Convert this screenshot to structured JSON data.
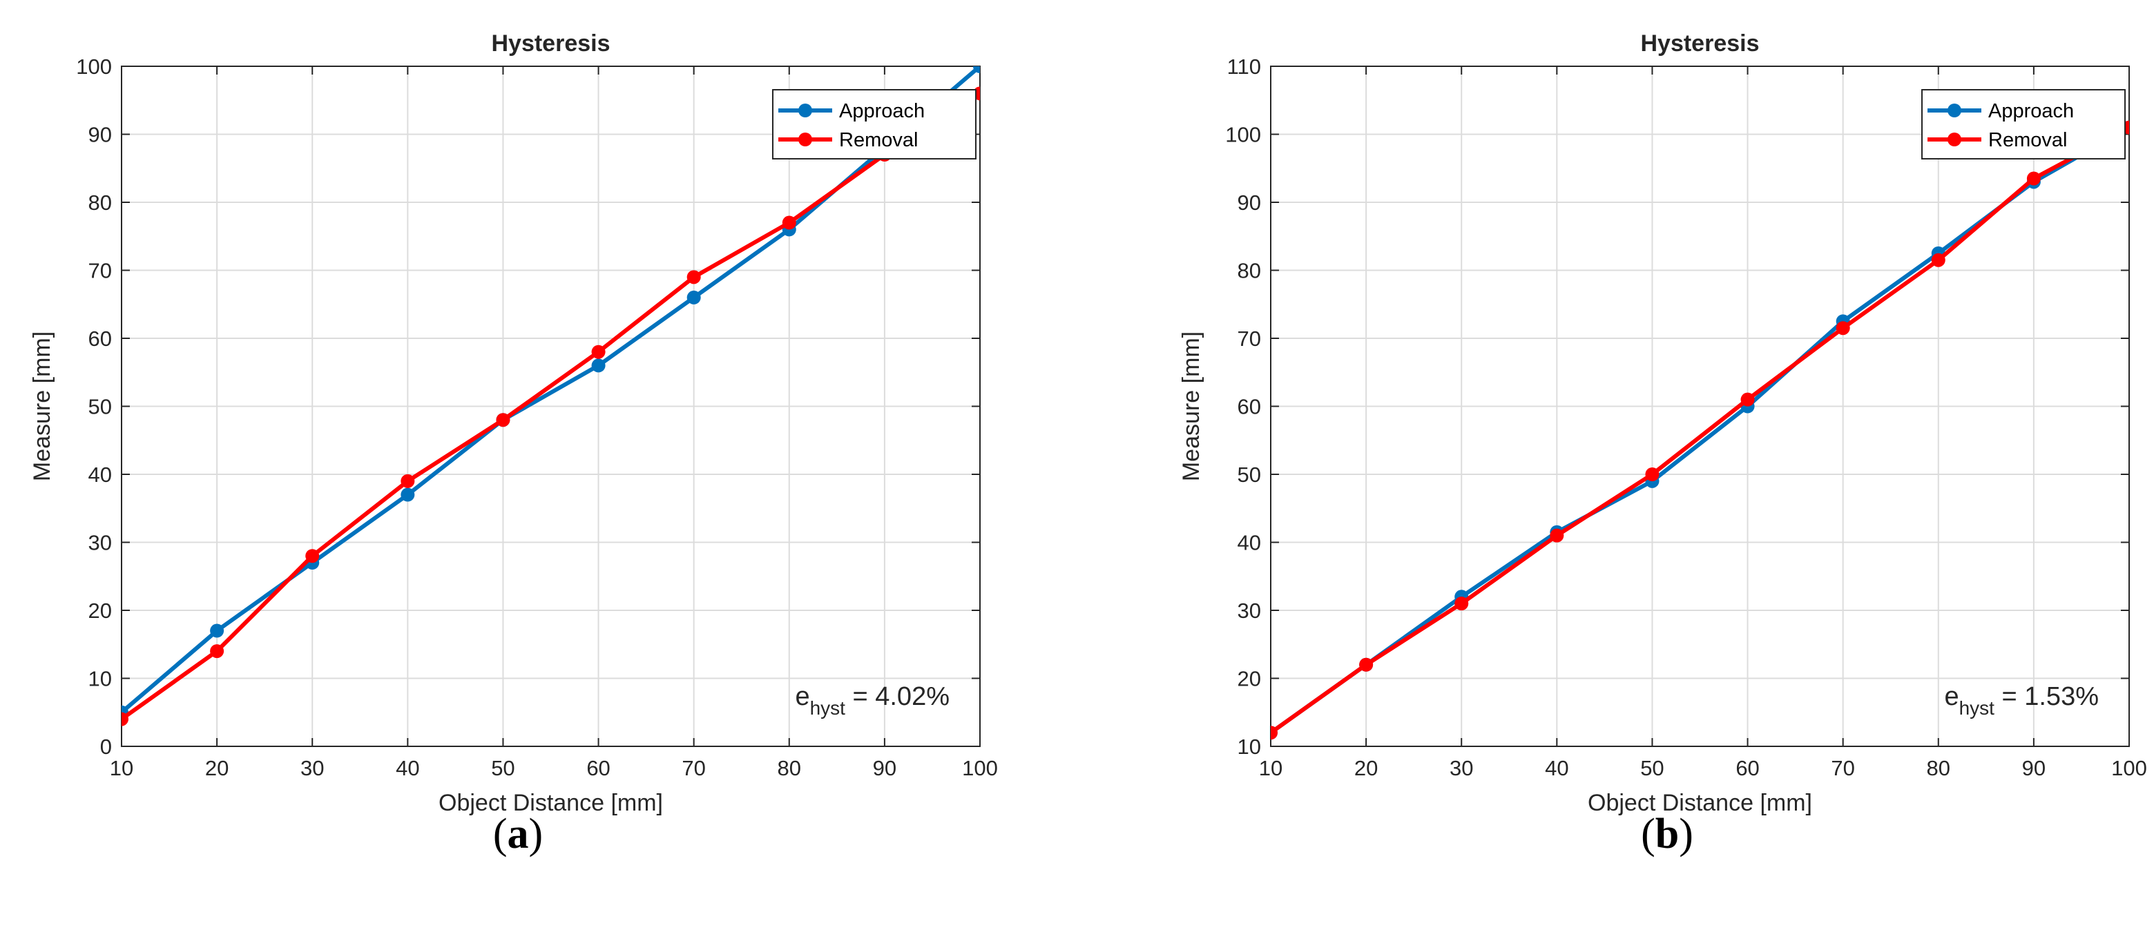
{
  "chart_data": [
    {
      "type": "line",
      "title": "Hysteresis",
      "xlabel": "Object Distance [mm]",
      "ylabel": "Measure [mm]",
      "xlim": [
        10,
        100
      ],
      "ylim": [
        0,
        100
      ],
      "xticks": [
        10,
        20,
        30,
        40,
        50,
        60,
        70,
        80,
        90,
        100
      ],
      "yticks": [
        0,
        10,
        20,
        30,
        40,
        50,
        60,
        70,
        80,
        90,
        100
      ],
      "grid": true,
      "legend_position": "top-right",
      "x": [
        10,
        20,
        30,
        40,
        50,
        60,
        70,
        80,
        90,
        100
      ],
      "series": [
        {
          "name": "Approach",
          "color": "#0072BD",
          "values": [
            5,
            17,
            27,
            37,
            48,
            56,
            66,
            76,
            88,
            100
          ]
        },
        {
          "name": "Removal",
          "color": "#FF0000",
          "values": [
            4,
            14,
            28,
            39,
            48,
            58,
            69,
            77,
            87,
            96
          ]
        }
      ],
      "annotation": {
        "main": "e",
        "sub": "hyst",
        "value": " = 4.02%"
      },
      "panel_label": {
        "open": "(",
        "letter": "a",
        "close": ")"
      }
    },
    {
      "type": "line",
      "title": "Hysteresis",
      "xlabel": "Object Distance [mm]",
      "ylabel": "Measure [mm]",
      "xlim": [
        10,
        100
      ],
      "ylim": [
        10,
        110
      ],
      "xticks": [
        10,
        20,
        30,
        40,
        50,
        60,
        70,
        80,
        90,
        100
      ],
      "yticks": [
        10,
        20,
        30,
        40,
        50,
        60,
        70,
        80,
        90,
        100,
        110
      ],
      "grid": true,
      "legend_position": "top-right",
      "x": [
        10,
        20,
        30,
        40,
        50,
        60,
        70,
        80,
        90,
        100
      ],
      "series": [
        {
          "name": "Approach",
          "color": "#0072BD",
          "values": [
            12,
            22,
            32,
            41.5,
            49,
            60,
            72.5,
            82.5,
            93,
            101
          ]
        },
        {
          "name": "Removal",
          "color": "#FF0000",
          "values": [
            12,
            22,
            31,
            41,
            50,
            61,
            71.5,
            81.5,
            93.5,
            101
          ]
        }
      ],
      "annotation": {
        "main": "e",
        "sub": "hyst",
        "value": " = 1.53%"
      },
      "panel_label": {
        "open": "(",
        "letter": "b",
        "close": ")"
      }
    }
  ]
}
